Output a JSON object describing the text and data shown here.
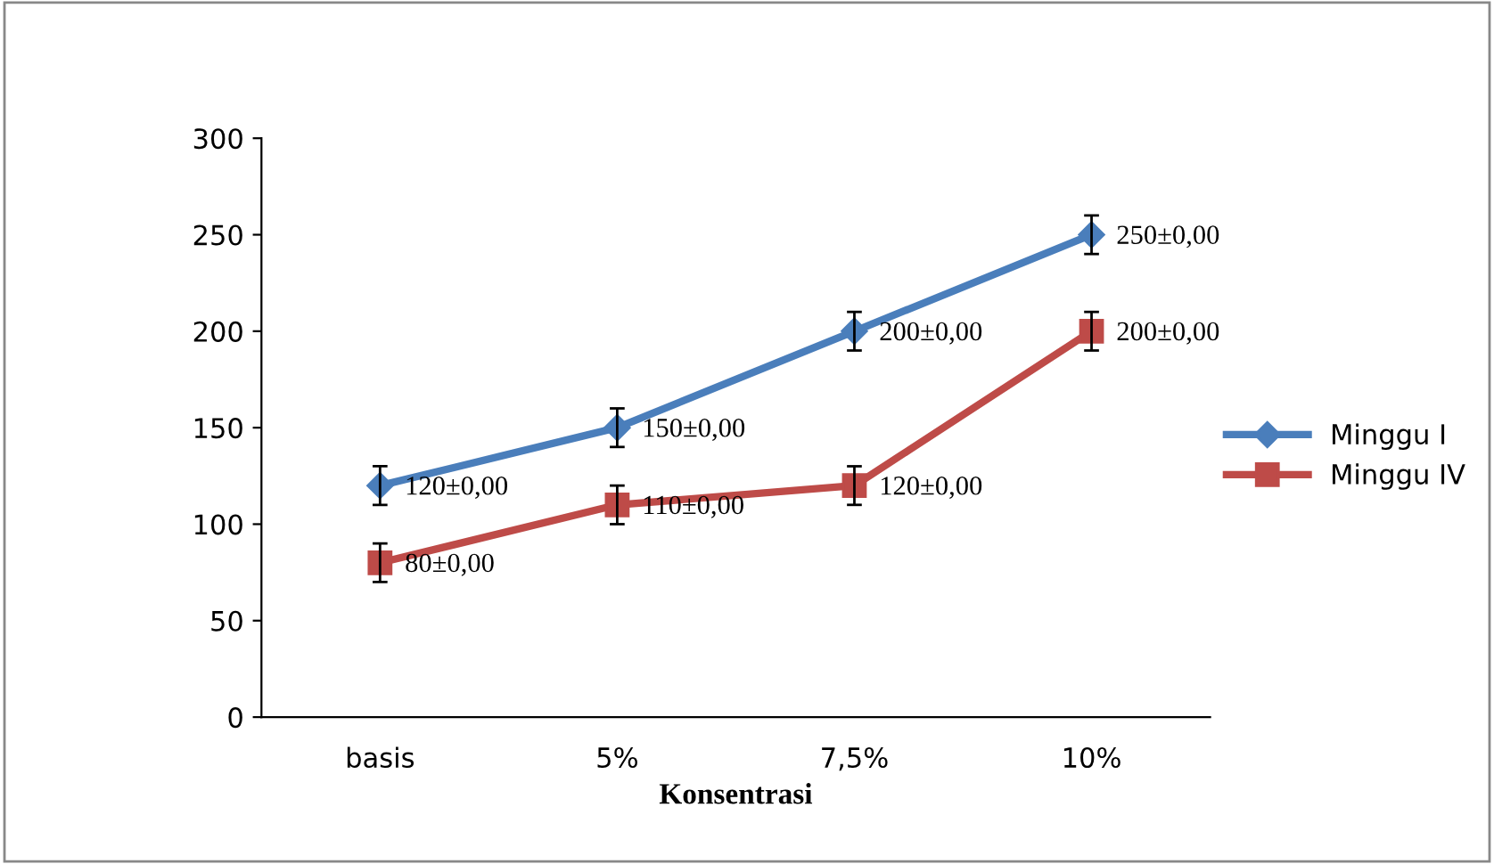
{
  "chart_data": {
    "type": "line",
    "xlabel": "Konsentrasi",
    "categories": [
      "basis",
      "5%",
      "7,5%",
      "10%"
    ],
    "series": [
      {
        "name": "Minggu I",
        "color": "#4a7ebb",
        "values": [
          120,
          150,
          200,
          250
        ],
        "errors": [
          10,
          10,
          10,
          10
        ],
        "value_labels": [
          "120±0,00",
          "150±0,00",
          "200±0,00",
          "250±0,00"
        ],
        "marker": "diamond"
      },
      {
        "name": "Minggu IV",
        "color": "#be4b48",
        "values": [
          80,
          110,
          120,
          200
        ],
        "errors": [
          10,
          10,
          10,
          10
        ],
        "value_labels": [
          "80±0,00",
          "110±0,00",
          "120±0,00",
          "200±0,00"
        ],
        "marker": "square"
      }
    ],
    "ylim": [
      0,
      300
    ],
    "yticks": [
      0,
      50,
      100,
      150,
      200,
      250,
      300
    ],
    "grid": false,
    "legend": "right",
    "line_style": "solid"
  }
}
